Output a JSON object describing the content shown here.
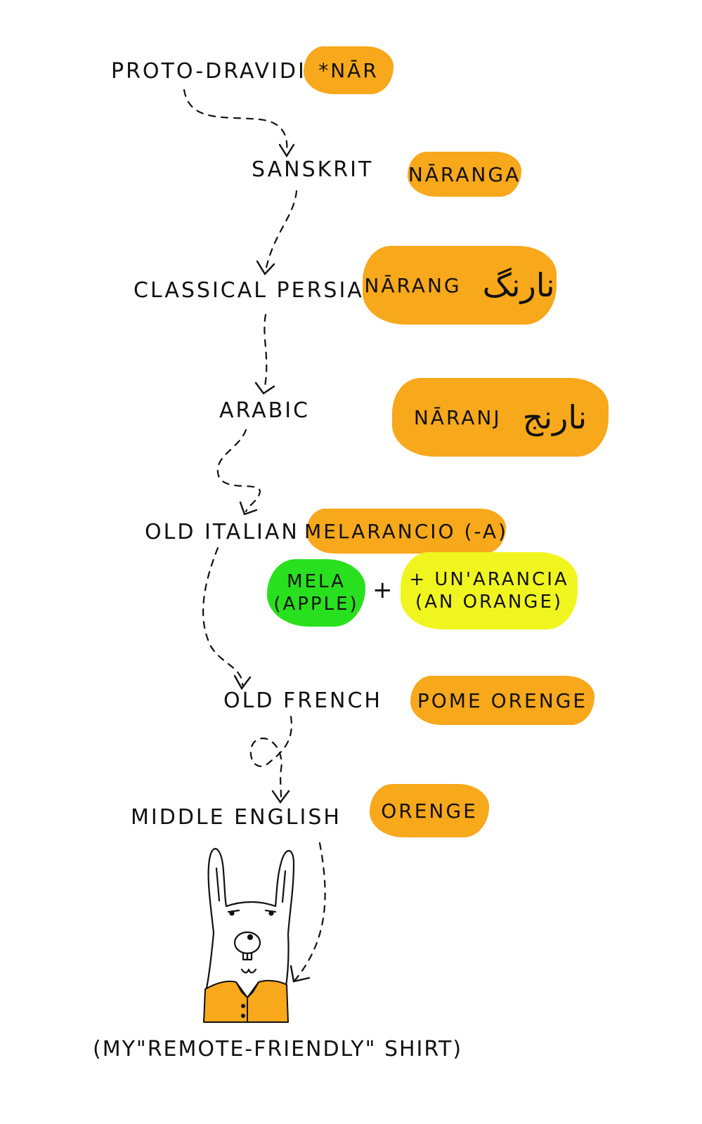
{
  "colors": {
    "orange": "#f7a81b",
    "green": "#29e01e",
    "yellow": "#f0f51f",
    "ink": "#111111"
  },
  "stages": [
    {
      "language": "PROTO-DRAVIDIAN",
      "word": "*NĀR"
    },
    {
      "language": "SANSKRIT",
      "word": "NĀRANGA"
    },
    {
      "language": "CLASSICAL PERSIAN",
      "word": "NĀRANG",
      "script": "نارنگ"
    },
    {
      "language": "ARABIC",
      "word": "NĀRANJ",
      "script": "نارنج"
    },
    {
      "language": "OLD ITALIAN",
      "word": "MELARANCIO (-A)"
    },
    {
      "language": "OLD FRENCH",
      "word": "POME ORENGE"
    },
    {
      "language": "MIDDLE ENGLISH",
      "word": "ORENGE"
    }
  ],
  "italian_parts": {
    "part1_line1": "MELA",
    "part1_line2": "(APPLE)",
    "plus": "+",
    "part2_line1": "+ UN'ARANCIA",
    "part2_line2": "(AN ORANGE)"
  },
  "caption": "(MY\"REMOTE-FRIENDLY\" SHIRT)",
  "icons": [
    "llama-icon",
    "dashed-arrow-icon"
  ]
}
